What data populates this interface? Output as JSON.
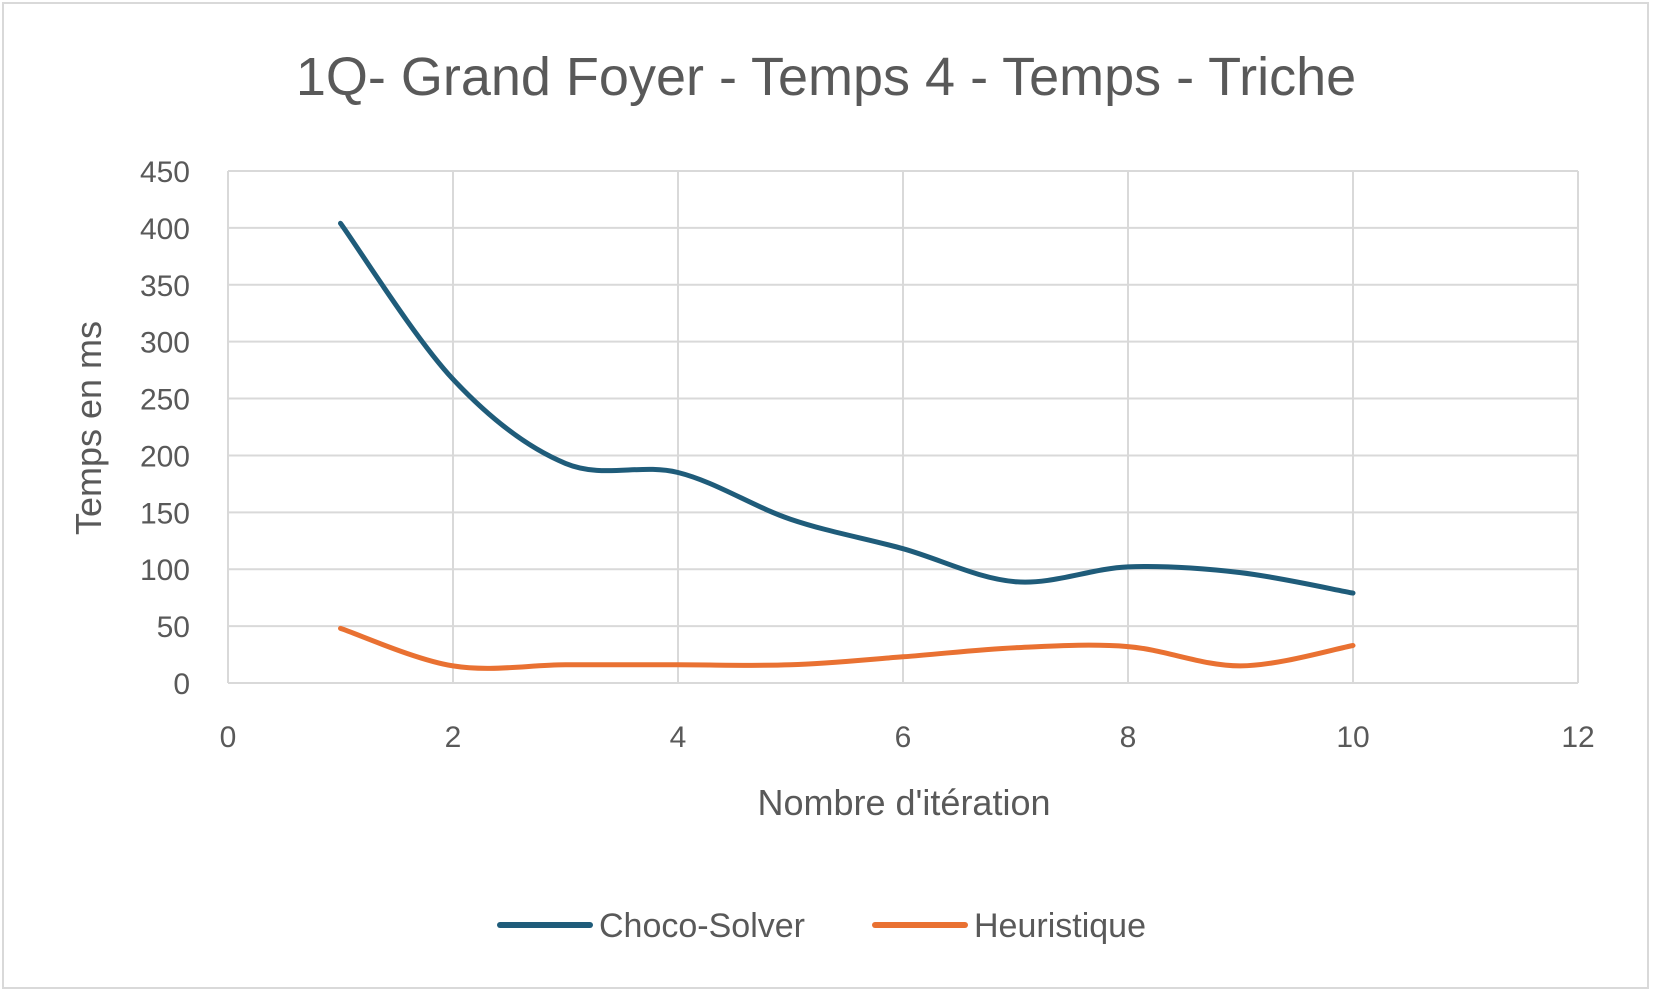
{
  "chart_data": {
    "type": "line",
    "title": "1Q- Grand Foyer - Temps 4 - Temps - Triche",
    "xlabel": "Nombre d'itération",
    "ylabel": "Temps en ms",
    "xlim": [
      0,
      12
    ],
    "ylim": [
      0,
      450
    ],
    "xticks": [
      "0",
      "2",
      "4",
      "6",
      "8",
      "10",
      "12"
    ],
    "yticks": [
      "0",
      "50",
      "100",
      "150",
      "200",
      "250",
      "300",
      "350",
      "400",
      "450"
    ],
    "grid": true,
    "smooth": true,
    "legend_position": "bottom",
    "x": [
      1,
      2,
      3,
      4,
      5,
      6,
      7,
      8,
      9,
      10
    ],
    "series": [
      {
        "name": "Choco-Solver",
        "color": "#1f5c7a",
        "values": [
          404,
          267,
          193,
          185,
          144,
          118,
          89,
          102,
          97,
          79
        ]
      },
      {
        "name": "Heuristique",
        "color": "#e97132",
        "values": [
          48,
          15,
          16,
          16,
          16,
          23,
          31,
          32,
          15,
          33
        ]
      }
    ]
  }
}
